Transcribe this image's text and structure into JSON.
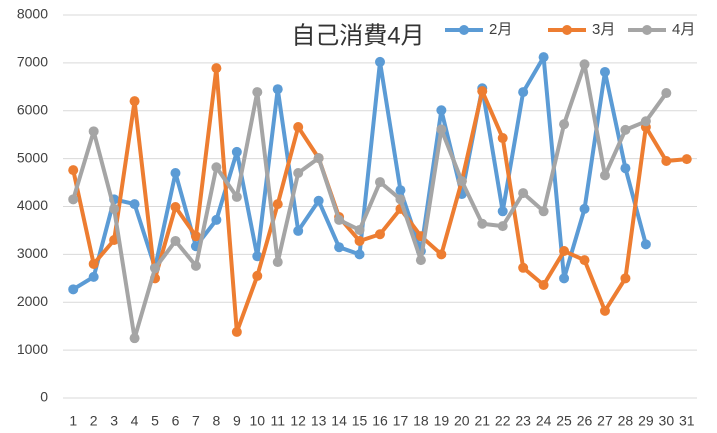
{
  "chart_data": {
    "type": "line",
    "title": "自己消費4月",
    "categories": [
      "1",
      "2",
      "3",
      "4",
      "5",
      "6",
      "7",
      "8",
      "9",
      "10",
      "11",
      "12",
      "13",
      "14",
      "15",
      "16",
      "17",
      "18",
      "19",
      "20",
      "21",
      "22",
      "23",
      "24",
      "25",
      "26",
      "27",
      "28",
      "29",
      "30",
      "31"
    ],
    "series": [
      {
        "name": "2月",
        "color": "#5b9bd5",
        "values": [
          2270,
          2530,
          4150,
          4050,
          2720,
          4700,
          3170,
          3720,
          5140,
          2960,
          6450,
          3490,
          4120,
          3150,
          3000,
          7020,
          4340,
          3070,
          6010,
          4260,
          6470,
          3900,
          6390,
          7120,
          2500,
          3950,
          6810,
          4800,
          3210,
          null,
          null
        ]
      },
      {
        "name": "3月",
        "color": "#ed7d31",
        "values": [
          4760,
          2800,
          3300,
          6200,
          2500,
          3990,
          3380,
          6890,
          1380,
          2550,
          4050,
          5660,
          5010,
          3780,
          3280,
          3420,
          3950,
          3380,
          3000,
          4530,
          6410,
          5430,
          2720,
          2360,
          3070,
          2880,
          1820,
          2500,
          5660,
          4950,
          4990
        ]
      },
      {
        "name": "4月",
        "color": "#a5a5a5",
        "values": [
          4150,
          5570,
          3950,
          1250,
          2710,
          3280,
          2760,
          4820,
          4200,
          6390,
          2840,
          4700,
          5010,
          3720,
          3510,
          4510,
          4150,
          2880,
          5610,
          4530,
          3640,
          3590,
          4280,
          3900,
          5720,
          6970,
          4650,
          5600,
          5780,
          6370,
          null
        ]
      }
    ],
    "ylim": [
      0,
      8000
    ],
    "yticks": [
      0,
      1000,
      2000,
      3000,
      4000,
      5000,
      6000,
      7000,
      8000
    ],
    "grid": true
  }
}
